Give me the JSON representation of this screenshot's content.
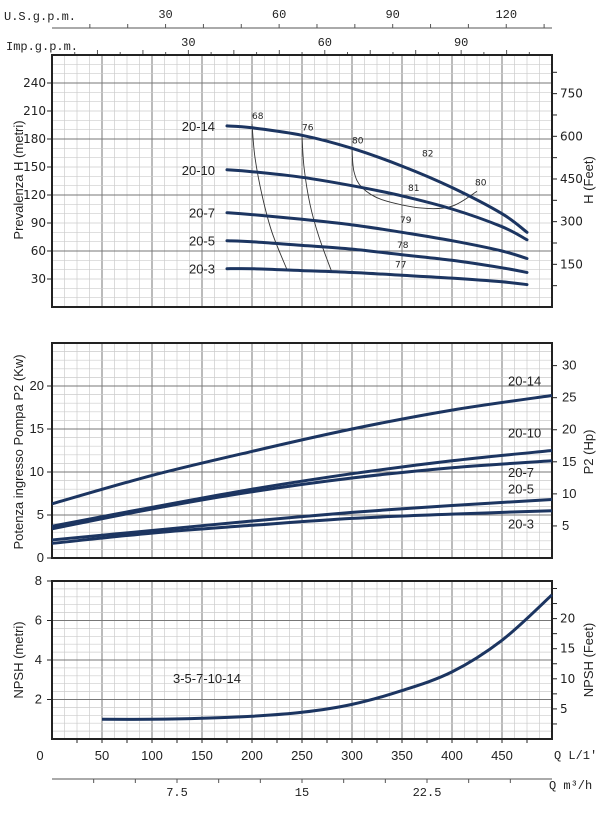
{
  "colors": {
    "curve": "#1c3561",
    "frame": "#222222",
    "grid_major": "#777777",
    "grid_minor": "#cccccc",
    "eff": "#333333"
  },
  "chart_data": [
    {
      "type": "line",
      "title": "",
      "xlabel": "Q L/1'",
      "ylabel": "Prevalenza H (metri)",
      "ylabel_right": "H (Feet)",
      "xlim": [
        0,
        500
      ],
      "ylim": [
        0,
        270
      ],
      "yticks": [
        "30",
        "60",
        "90",
        "120",
        "150",
        "180",
        "210",
        "240"
      ],
      "yticks_right": [
        "150",
        "300",
        "450",
        "600",
        "750"
      ],
      "grid": true,
      "series": [
        {
          "name": "20-14",
          "x": [
            175,
            200,
            250,
            300,
            350,
            400,
            450,
            475
          ],
          "y": [
            194,
            192,
            184,
            170,
            151,
            128,
            100,
            80
          ]
        },
        {
          "name": "20-10",
          "x": [
            175,
            200,
            250,
            300,
            350,
            400,
            450,
            475
          ],
          "y": [
            147,
            145,
            139,
            130,
            119,
            105,
            86,
            72
          ]
        },
        {
          "name": "20-7",
          "x": [
            175,
            200,
            250,
            300,
            350,
            400,
            450,
            475
          ],
          "y": [
            101,
            99,
            94,
            88,
            80,
            71,
            60,
            52
          ]
        },
        {
          "name": "20-5",
          "x": [
            175,
            200,
            250,
            300,
            350,
            400,
            450,
            475
          ],
          "y": [
            71,
            70,
            66,
            62,
            56,
            50,
            42,
            37
          ]
        },
        {
          "name": "20-3",
          "x": [
            175,
            200,
            250,
            300,
            350,
            400,
            450,
            475
          ],
          "y": [
            41,
            41,
            39,
            37,
            34,
            31,
            27,
            24
          ]
        }
      ],
      "efficiency_curves": [
        {
          "label": "68",
          "x": [
            200,
            203,
            210,
            220,
            235
          ],
          "y": [
            196,
            160,
            120,
            80,
            40
          ]
        },
        {
          "label": "76",
          "x": [
            250,
            252,
            258,
            267,
            280
          ],
          "y": [
            184,
            150,
            110,
            75,
            37
          ]
        },
        {
          "label": "80",
          "x": [
            300,
            302,
            310,
            330,
            370,
            400,
            425
          ],
          "y": [
            170,
            145,
            128,
            115,
            106,
            108,
            124
          ]
        }
      ],
      "efficiency_labels": [
        {
          "text": "68",
          "x": 202,
          "y": 198
        },
        {
          "text": "76",
          "x": 252,
          "y": 186
        },
        {
          "text": "80",
          "x": 302,
          "y": 172
        },
        {
          "text": "82",
          "x": 372,
          "y": 158
        },
        {
          "text": "80",
          "x": 425,
          "y": 127
        },
        {
          "text": "81",
          "x": 358,
          "y": 121
        },
        {
          "text": "79",
          "x": 350,
          "y": 87
        },
        {
          "text": "78",
          "x": 347,
          "y": 60
        },
        {
          "text": "77",
          "x": 345,
          "y": 39
        }
      ]
    },
    {
      "type": "line",
      "title": "",
      "ylabel": "Potenza ingresso Pompa P2 (Kw)",
      "ylabel_right": "P2 (Hp)",
      "xlim": [
        0,
        500
      ],
      "ylim": [
        0,
        25
      ],
      "yticks": [
        "0",
        "5",
        "10",
        "15",
        "20"
      ],
      "yticks_right": [
        "5",
        "10",
        "15",
        "20",
        "25",
        "30"
      ],
      "grid": true,
      "series": [
        {
          "name": "20-14",
          "x": [
            0,
            100,
            200,
            300,
            400,
            500
          ],
          "y": [
            6.3,
            9.6,
            12.4,
            15.0,
            17.2,
            18.9
          ]
        },
        {
          "name": "20-10",
          "x": [
            0,
            100,
            200,
            300,
            400,
            500
          ],
          "y": [
            3.7,
            5.9,
            8.0,
            9.8,
            11.3,
            12.5
          ]
        },
        {
          "name": "20-7",
          "x": [
            0,
            100,
            200,
            300,
            400,
            500
          ],
          "y": [
            3.4,
            5.7,
            7.7,
            9.3,
            10.5,
            11.3
          ]
        },
        {
          "name": "20-5",
          "x": [
            0,
            100,
            200,
            300,
            400,
            500
          ],
          "y": [
            2.1,
            3.2,
            4.3,
            5.3,
            6.1,
            6.8
          ]
        },
        {
          "name": "20-3",
          "x": [
            0,
            100,
            200,
            300,
            400,
            500
          ],
          "y": [
            1.7,
            2.9,
            3.8,
            4.6,
            5.1,
            5.5
          ]
        }
      ]
    },
    {
      "type": "line",
      "title": "",
      "ylabel": "NPSH (metri)",
      "ylabel_right": "NPSH (Feet)",
      "xlabel": "Q L/1'",
      "xlabel2": "Q m³/h",
      "xlim": [
        0,
        500
      ],
      "ylim": [
        0,
        8
      ],
      "yticks": [
        "2",
        "4",
        "6",
        "8"
      ],
      "yticks_right": [
        "5",
        "10",
        "15",
        "20"
      ],
      "xticks": [
        "0",
        "50",
        "100",
        "150",
        "200",
        "250",
        "300",
        "350",
        "400",
        "450"
      ],
      "xticks_m3h": [
        "7.5",
        "15",
        "22.5"
      ],
      "grid": true,
      "annotation": "3-5-7-10-14",
      "series": [
        {
          "name": "3-5-7-10-14",
          "x": [
            50,
            100,
            150,
            200,
            250,
            300,
            350,
            400,
            450,
            500
          ],
          "y": [
            1.0,
            1.0,
            1.05,
            1.15,
            1.35,
            1.75,
            2.45,
            3.4,
            5.0,
            7.3
          ]
        }
      ]
    }
  ],
  "top_axes": {
    "usgpm_label": "U.S.g.p.m.",
    "usgpm_ticks": [
      "30",
      "60",
      "90",
      "120"
    ],
    "impgpm_label": "Imp.g.p.m.",
    "impgpm_ticks": [
      "30",
      "60",
      "90"
    ]
  }
}
